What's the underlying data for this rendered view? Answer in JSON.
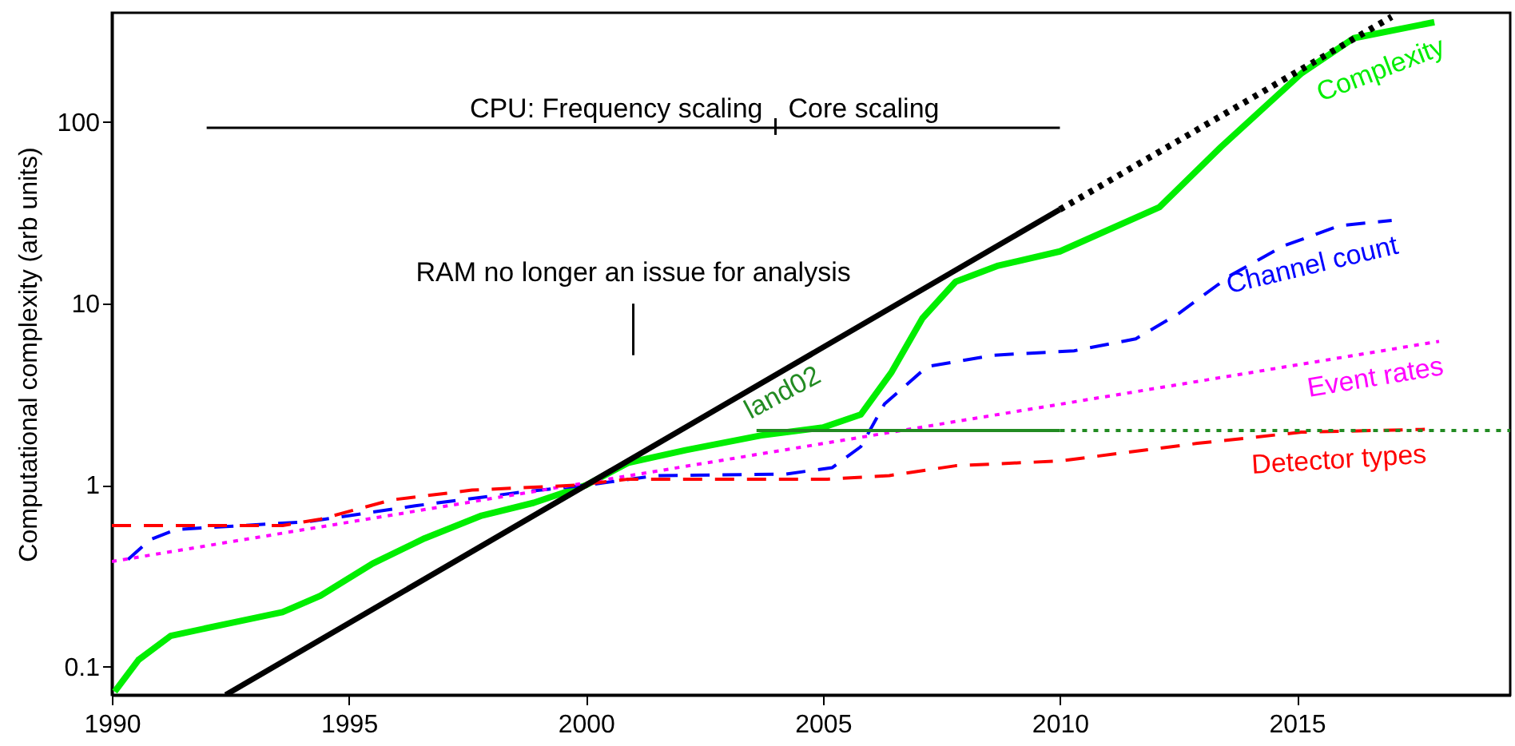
{
  "chart_data": {
    "type": "line",
    "ylabel": "Computational complexity (arb units)",
    "log": "y",
    "grid": false,
    "xlim": [
      1990,
      2019.5
    ],
    "xticks": [
      1990,
      1995,
      2000,
      2005,
      2010,
      2015
    ],
    "ylim": [
      0.07,
      400
    ],
    "yticks": [
      0.1,
      1,
      10,
      100
    ],
    "annotations": [
      "CPU: Frequency scaling",
      "Core scaling",
      "RAM no longer an issue for analysis"
    ],
    "series": [
      {
        "name": "Complexity",
        "color": "#00ee00",
        "line_style": "solid",
        "x": [
          1990.06,
          1990.56,
          1991.24,
          1992.5,
          1993.6,
          1994.4,
          1995.5,
          1996.6,
          1997.8,
          1998.9,
          2000,
          2000.9,
          2002.1,
          2003.7,
          2005,
          2005.8,
          2006.45,
          2007.1,
          2007.8,
          2008.7,
          2010,
          2012.1,
          2013.4,
          2015.1,
          2016.2,
          2017.9
        ],
        "values": [
          0.073,
          0.109,
          0.148,
          0.174,
          0.2,
          0.246,
          0.37,
          0.51,
          0.68,
          0.8,
          1.0,
          1.33,
          1.56,
          1.88,
          2.08,
          2.45,
          4.2,
          8.3,
          13.2,
          16.2,
          19.4,
          34,
          73,
          186,
          290,
          355
        ]
      },
      {
        "name": "Channel count",
        "color": "#0000ff",
        "line_style": "dashed",
        "x": [
          1990.34,
          1990.8,
          1991.35,
          1994.15,
          1996.4,
          1998.7,
          2000,
          2001.5,
          2004.2,
          2005.2,
          2005.8,
          2006.3,
          2007.2,
          2008.6,
          2010.3,
          2011.6,
          2012.5,
          2013.6,
          2014.7,
          2015.9,
          2017
        ],
        "values": [
          0.39,
          0.5,
          0.57,
          0.63,
          0.77,
          0.92,
          1.0,
          1.13,
          1.15,
          1.25,
          1.63,
          2.8,
          4.5,
          5.2,
          5.5,
          6.4,
          8.8,
          14.3,
          20.7,
          26.9,
          28.7
        ]
      },
      {
        "name": "Event rates",
        "color": "#ff00ff",
        "line_style": "dotted",
        "x": [
          1990,
          2018
        ],
        "values": [
          0.38,
          6.2
        ]
      },
      {
        "name": "Detector types",
        "color": "#ff0000",
        "line_style": "dashed",
        "x": [
          1990,
          1993.6,
          1994.4,
          1995.9,
          1997.6,
          1999.8,
          2000.9,
          2005.1,
          2006.4,
          2007.8,
          2010,
          2012.9,
          2015.1,
          2017.7
        ],
        "values": [
          0.6,
          0.6,
          0.65,
          0.83,
          0.94,
          1.0,
          1.08,
          1.08,
          1.13,
          1.28,
          1.36,
          1.7,
          1.96,
          2.03
        ]
      },
      {
        "color": "#000000",
        "line_style": "solid",
        "x": [
          1992.4,
          2010
        ],
        "values": [
          0.07,
          33
        ]
      },
      {
        "color": "#000000",
        "line_style": "dotted",
        "x": [
          2010,
          2017
        ],
        "values": [
          33,
          380
        ]
      },
      {
        "name": "land02",
        "color": "#228b22",
        "line_style": "solid",
        "x": [
          2003.6,
          2010
        ],
        "values": [
          2,
          2
        ]
      },
      {
        "color": "#228b22",
        "line_style": "dotted",
        "x": [
          2010,
          2019.5
        ],
        "values": [
          2,
          2
        ]
      },
      {
        "color": "#000000",
        "line_style": "solid",
        "x": [
          1992,
          2010
        ],
        "values": [
          93,
          93
        ]
      },
      {
        "color": "#000000",
        "line_style": "solid",
        "x": [
          2004,
          2004
        ],
        "values": [
          85,
          105
        ]
      },
      {
        "color": "#000000",
        "line_style": "solid",
        "x": [
          2001,
          2001
        ],
        "values": [
          10,
          5.2
        ]
      }
    ]
  }
}
